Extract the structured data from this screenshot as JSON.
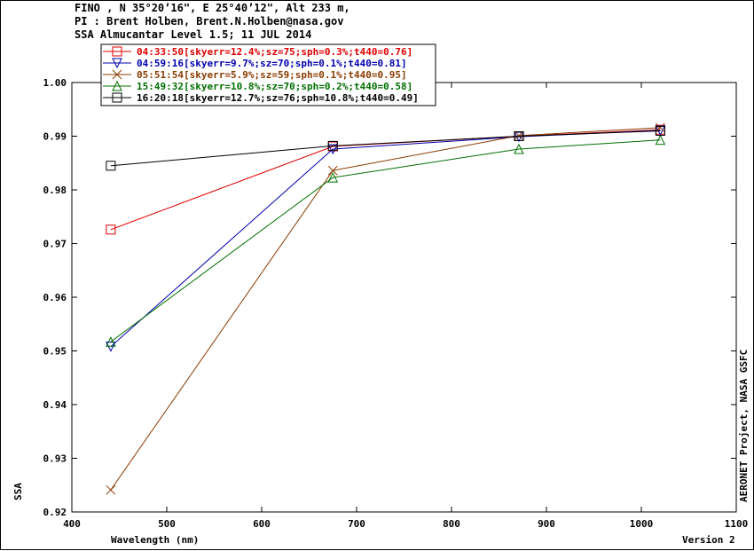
{
  "header": {
    "line1": "FINO , N 35°20’16\", E 25°40’12\", Alt 233 m,",
    "line2": "PI : Brent Holben, Brent.N.Holben@nasa.gov",
    "line3": "SSA Almucantar Level 1.5; 11 JUL 2014"
  },
  "side_label": "AERONET Project, NASA GSFC",
  "version_label": "Version 2",
  "chart_data": {
    "type": "line",
    "xlabel": "Wavelength (nm)",
    "ylabel": "SSA",
    "xlim": [
      400,
      1100
    ],
    "ylim": [
      0.92,
      1.0
    ],
    "x_ticks": [
      "400",
      "500",
      "600",
      "700",
      "800",
      "900",
      "1000",
      "1100"
    ],
    "y_ticks": [
      "0.92",
      "0.93",
      "0.94",
      "0.95",
      "0.96",
      "0.97",
      "0.98",
      "0.99",
      "1.00"
    ],
    "legend_position": "top-left",
    "series": [
      {
        "name": "04:33:50[skyerr=12.4%;sz=75;sph=0.3%;t440=0.76]",
        "color": "#e00000",
        "marker": "square",
        "x": [
          441,
          675,
          871,
          1020
        ],
        "values": [
          0.9726,
          0.9881,
          0.99,
          0.9912
        ]
      },
      {
        "name": "04:59:16[skyerr=9.7%;sz=70;sph=0.1%;t440=0.81]",
        "color": "#0000b0",
        "marker": "triangle-down",
        "x": [
          441,
          675,
          871,
          1020
        ],
        "values": [
          0.9508,
          0.9876,
          0.9899,
          0.9911
        ]
      },
      {
        "name": "05:51:54[skyerr=5.9%;sz=59;sph=0.1%;t440=0.95]",
        "color": "#8b3a00",
        "marker": "x",
        "x": [
          441,
          675,
          871,
          1020
        ],
        "values": [
          0.9241,
          0.9836,
          0.9901,
          0.9916
        ]
      },
      {
        "name": "15:49:32[skyerr=10.8%;sz=70;sph=0.2%;t440=0.58]",
        "color": "#007000",
        "marker": "triangle-up",
        "x": [
          441,
          675,
          871,
          1020
        ],
        "values": [
          0.9517,
          0.9823,
          0.9876,
          0.9893
        ]
      },
      {
        "name": "16:20:18[skyerr=12.7%;sz=76;sph=10.8%;t440=0.49]",
        "color": "#000000",
        "marker": "square",
        "x": [
          441,
          675,
          871,
          1020
        ],
        "values": [
          0.9845,
          0.9882,
          0.99,
          0.991
        ]
      }
    ]
  }
}
